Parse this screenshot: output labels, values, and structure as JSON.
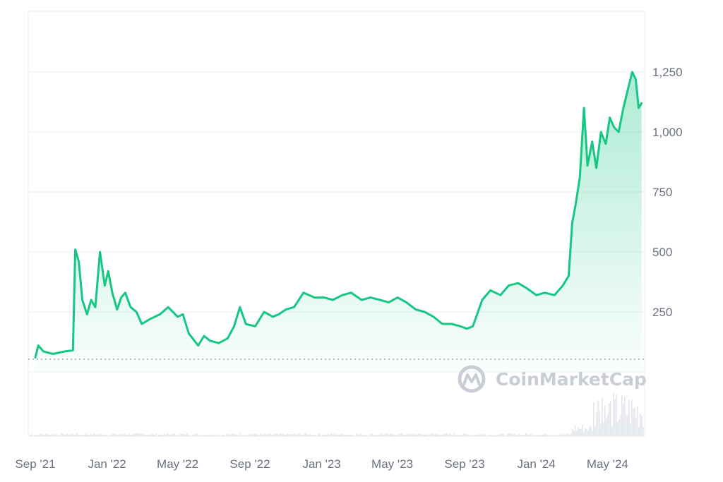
{
  "watermark": {
    "text": "CoinMarketCap",
    "icon": "coinmarketcap-logo-icon"
  },
  "colors": {
    "line": "#16c784",
    "area_top": "#16c784",
    "grid": "#eceef2",
    "axis_text": "#6b7180",
    "watermark": "#c9cdd6",
    "volume": "#e3e6ec"
  },
  "chart_data": {
    "type": "area",
    "y_axis_position": "right",
    "grid": true,
    "baseline_dotted": true,
    "yticks": [
      250,
      500,
      750,
      1000,
      1250
    ],
    "ytick_labels": [
      "250",
      "500",
      "750",
      "1,000",
      "1,250"
    ],
    "xticks": [
      "2021-09-01",
      "2022-01-01",
      "2022-05-01",
      "2022-09-01",
      "2023-01-01",
      "2023-05-01",
      "2023-09-01",
      "2024-01-01",
      "2024-05-01"
    ],
    "xtick_labels": [
      "Sep '21",
      "Jan '22",
      "May '22",
      "Sep '22",
      "Jan '23",
      "May '23",
      "Sep '23",
      "Jan '24",
      "May '24"
    ],
    "x_range": [
      "2021-09-01",
      "2024-06-28"
    ],
    "ylim": [
      0,
      1500
    ],
    "series": [
      {
        "x": [
          "2021-09-01",
          "2021-09-06",
          "2021-09-15",
          "2021-10-01",
          "2021-10-20",
          "2021-11-04",
          "2021-11-08",
          "2021-11-14",
          "2021-11-20",
          "2021-11-28",
          "2021-12-05",
          "2021-12-12",
          "2021-12-20",
          "2021-12-28",
          "2022-01-03",
          "2022-01-10",
          "2022-01-18",
          "2022-01-25",
          "2022-02-01",
          "2022-02-10",
          "2022-02-20",
          "2022-03-01",
          "2022-03-15",
          "2022-04-01",
          "2022-04-15",
          "2022-05-01",
          "2022-05-10",
          "2022-05-20",
          "2022-06-05",
          "2022-06-15",
          "2022-06-25",
          "2022-07-10",
          "2022-07-25",
          "2022-08-05",
          "2022-08-15",
          "2022-08-25",
          "2022-09-10",
          "2022-09-25",
          "2022-10-10",
          "2022-10-20",
          "2022-11-01",
          "2022-11-15",
          "2022-12-01",
          "2022-12-20",
          "2023-01-05",
          "2023-01-20",
          "2023-02-05",
          "2023-02-20",
          "2023-03-10",
          "2023-03-25",
          "2023-04-10",
          "2023-04-25",
          "2023-05-10",
          "2023-05-25",
          "2023-06-10",
          "2023-06-25",
          "2023-07-10",
          "2023-07-25",
          "2023-08-10",
          "2023-08-25",
          "2023-09-05",
          "2023-09-15",
          "2023-10-01",
          "2023-10-15",
          "2023-11-01",
          "2023-11-15",
          "2023-12-01",
          "2023-12-15",
          "2024-01-01",
          "2024-01-15",
          "2024-02-01",
          "2024-02-15",
          "2024-02-25",
          "2024-03-02",
          "2024-03-08",
          "2024-03-15",
          "2024-03-22",
          "2024-03-28",
          "2024-04-05",
          "2024-04-12",
          "2024-04-20",
          "2024-04-28",
          "2024-05-05",
          "2024-05-12",
          "2024-05-20",
          "2024-05-28",
          "2024-06-05",
          "2024-06-12",
          "2024-06-18",
          "2024-06-23",
          "2024-06-28"
        ],
        "y": [
          60,
          110,
          85,
          75,
          85,
          90,
          510,
          460,
          300,
          240,
          300,
          270,
          500,
          360,
          420,
          330,
          260,
          310,
          330,
          270,
          250,
          200,
          220,
          240,
          270,
          230,
          240,
          160,
          110,
          150,
          130,
          120,
          140,
          190,
          270,
          200,
          190,
          250,
          230,
          240,
          260,
          270,
          330,
          310,
          310,
          300,
          320,
          330,
          300,
          310,
          300,
          290,
          310,
          290,
          260,
          250,
          230,
          200,
          200,
          190,
          180,
          190,
          300,
          340,
          320,
          360,
          370,
          350,
          320,
          330,
          320,
          360,
          400,
          620,
          700,
          810,
          1100,
          860,
          960,
          850,
          1000,
          950,
          1060,
          1020,
          1000,
          1100,
          1180,
          1250,
          1220,
          1100,
          1120
        ]
      }
    ]
  }
}
